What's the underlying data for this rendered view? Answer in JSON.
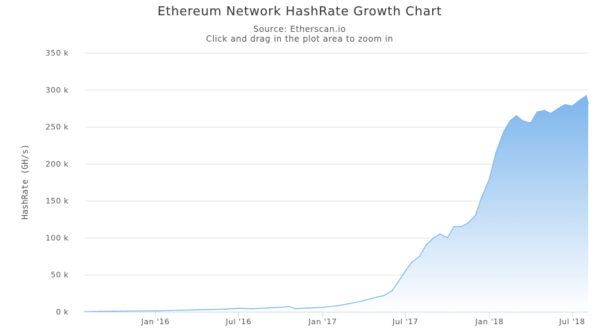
{
  "chart_data": {
    "type": "area",
    "title": "Ethereum Network HashRate Growth Chart",
    "subtitle_lines": [
      "Source: Etherscan.io",
      "Click and drag in the plot area to zoom in"
    ],
    "xlabel": "",
    "ylabel": "HashRate (GH/s)",
    "ylim": [
      0,
      350000
    ],
    "y_ticks": [
      {
        "value": 0,
        "label": "0 k"
      },
      {
        "value": 50000,
        "label": "50 k"
      },
      {
        "value": 100000,
        "label": "100 k"
      },
      {
        "value": 150000,
        "label": "150 k"
      },
      {
        "value": 200000,
        "label": "200 k"
      },
      {
        "value": 250000,
        "label": "250 k"
      },
      {
        "value": 300000,
        "label": "300 k"
      },
      {
        "value": 350000,
        "label": "350 k"
      }
    ],
    "xlim": [
      "2015-07-30",
      "2018-08-05"
    ],
    "x_ticks": [
      {
        "value": "2016-01-01",
        "label": "Jan '16"
      },
      {
        "value": "2016-07-01",
        "label": "Jul '16"
      },
      {
        "value": "2017-01-01",
        "label": "Jan '17"
      },
      {
        "value": "2017-07-01",
        "label": "Jul '17"
      },
      {
        "value": "2018-01-01",
        "label": "Jan '18"
      },
      {
        "value": "2018-07-01",
        "label": "Jul '18"
      }
    ],
    "grid": true,
    "legend": "none",
    "colors": {
      "line": "#7cb5ec",
      "fill_top": "#7cb5ec",
      "fill_bottom": "#ffffff"
    },
    "series": [
      {
        "x": [
          "2015-07-30",
          "2015-09-01",
          "2015-10-01",
          "2015-11-01",
          "2015-12-01",
          "2016-01-01",
          "2016-02-01",
          "2016-03-01",
          "2016-04-01",
          "2016-05-01",
          "2016-06-01",
          "2016-07-01",
          "2016-08-01",
          "2016-09-01",
          "2016-10-01",
          "2016-10-20",
          "2016-11-01",
          "2016-12-01",
          "2017-01-01",
          "2017-02-01",
          "2017-03-01",
          "2017-04-01",
          "2017-05-01",
          "2017-05-15",
          "2017-06-01",
          "2017-06-15",
          "2017-07-01",
          "2017-07-15",
          "2017-08-01",
          "2017-08-15",
          "2017-09-01",
          "2017-09-15",
          "2017-10-01",
          "2017-10-15",
          "2017-11-01",
          "2017-11-15",
          "2017-12-01",
          "2017-12-15",
          "2018-01-01",
          "2018-01-15",
          "2018-02-01",
          "2018-02-15",
          "2018-03-01",
          "2018-03-15",
          "2018-04-01",
          "2018-04-15",
          "2018-05-01",
          "2018-05-15",
          "2018-06-01",
          "2018-06-15",
          "2018-07-01",
          "2018-07-15",
          "2018-08-01",
          "2018-08-05"
        ],
        "y": [
          0,
          500,
          700,
          800,
          1000,
          1100,
          1500,
          2000,
          2500,
          3000,
          3500,
          4500,
          4000,
          5000,
          6000,
          7000,
          4000,
          5000,
          6000,
          8000,
          11000,
          15000,
          20000,
          22000,
          28000,
          40000,
          55000,
          67000,
          75000,
          90000,
          100000,
          105000,
          100000,
          115000,
          115000,
          120000,
          130000,
          155000,
          180000,
          215000,
          243000,
          258000,
          265000,
          258000,
          255000,
          270000,
          272000,
          268000,
          275000,
          280000,
          278000,
          285000,
          292000,
          281000
        ]
      }
    ]
  }
}
